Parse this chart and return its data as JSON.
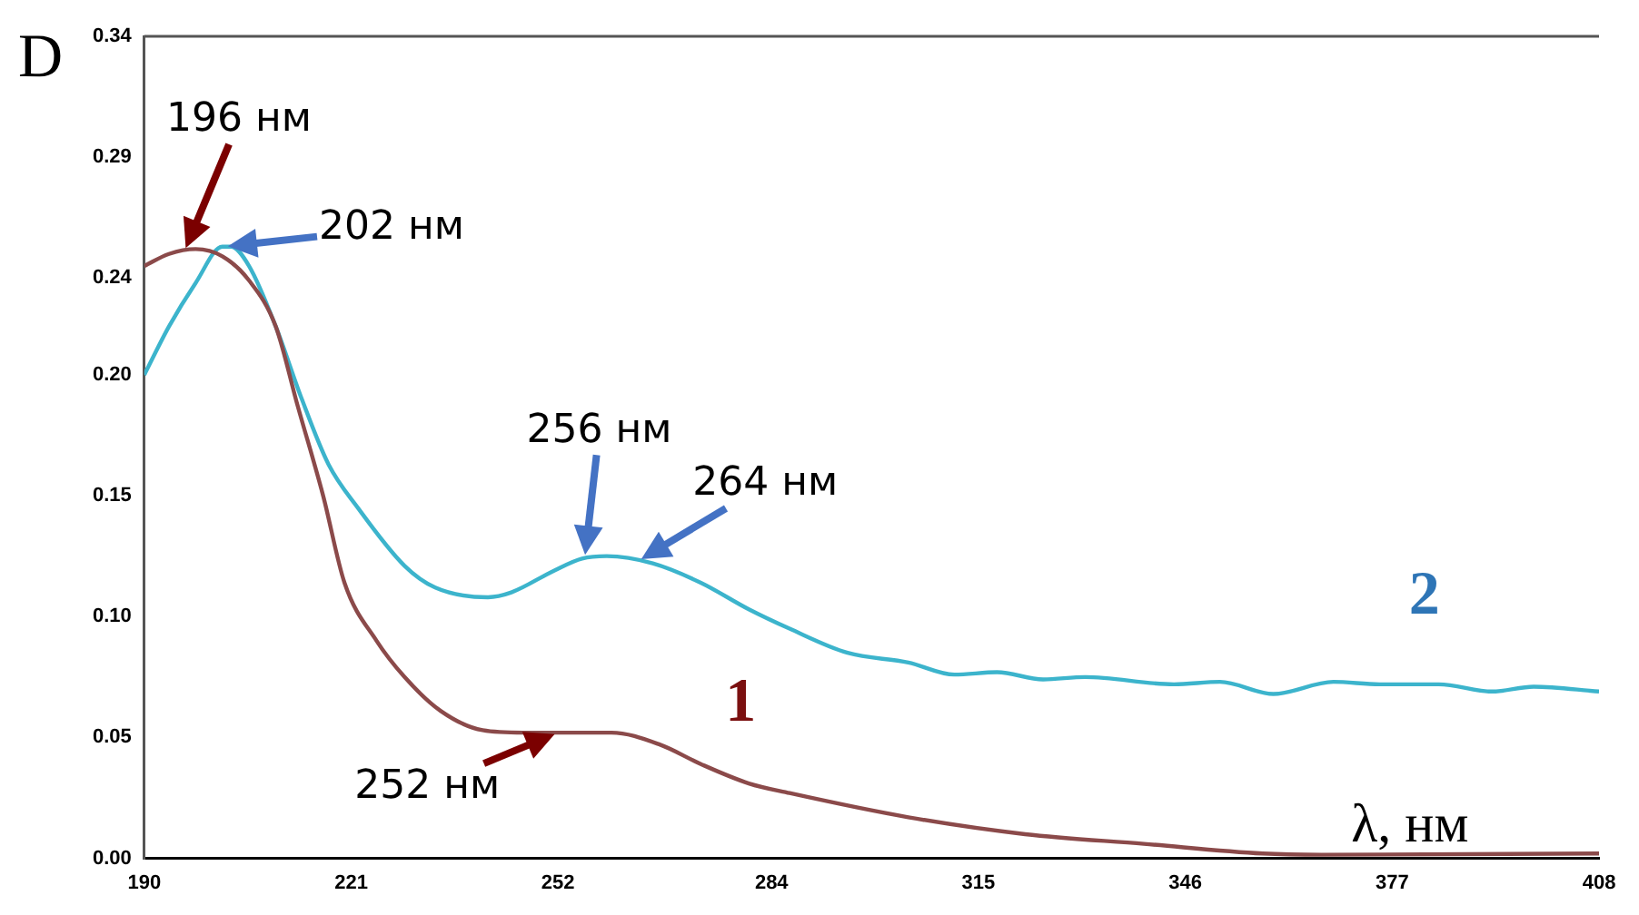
{
  "chart_data": {
    "type": "line",
    "title": "D",
    "xlabel": "λ, нм",
    "xlim": [
      190,
      408
    ],
    "xticks": [
      190,
      221,
      252,
      284,
      315,
      346,
      377,
      408
    ],
    "ylim": [
      0,
      0.34
    ],
    "yticks": [
      {
        "value": 0,
        "label": "0.00"
      },
      0.05,
      {
        "value": 0.1,
        "label": "0.10"
      },
      0.15,
      {
        "value": 0.2,
        "label": "0.20"
      },
      0.24,
      0.29,
      0.34
    ],
    "grid": false,
    "legend": false,
    "marker": "none",
    "line_style": "solid",
    "series": [
      {
        "name": "1",
        "color": "#8b4a4a",
        "x": [
          190,
          193.7,
          197.7,
          201.7,
          205.7,
          209.7,
          213,
          216.8,
          220,
          224.8,
          229,
          234.4,
          240.7,
          246.8,
          260,
          267.3,
          273.4,
          280.6,
          286.7,
          304.5,
          322,
          339.8,
          357.6,
          366.4,
          408
        ],
        "values": [
          0.245,
          0.25,
          0.252,
          0.249,
          0.239,
          0.22,
          0.187,
          0.15,
          0.114,
          0.09,
          0.075,
          0.061,
          0.053,
          0.052,
          0.052,
          0.047,
          0.039,
          0.031,
          0.027,
          0.017,
          0.01,
          0.006,
          0.002,
          0.0015,
          0.002
        ]
      },
      {
        "name": "2",
        "color": "#3cb4cc",
        "x": [
          190,
          193.7,
          197.7,
          201.7,
          203,
          205.7,
          209.7,
          213.6,
          217.6,
          222,
          229,
          233.6,
          241.5,
          245,
          251.4,
          255.6,
          259.3,
          266.2,
          273.4,
          280.6,
          286.7,
          295.4,
          304.5,
          311.4,
          317.8,
          324.7,
          331,
          344.3,
          351.2,
          359.2,
          368.2,
          375.1,
          384,
          392,
          398.2,
          408
        ],
        "values": [
          0.2,
          0.22,
          0.238,
          0.253,
          0.253,
          0.245,
          0.22,
          0.19,
          0.163,
          0.145,
          0.121,
          0.112,
          0.108,
          0.11,
          0.119,
          0.124,
          0.125,
          0.122,
          0.114,
          0.103,
          0.095,
          0.085,
          0.081,
          0.076,
          0.077,
          0.074,
          0.075,
          0.072,
          0.073,
          0.068,
          0.073,
          0.072,
          0.072,
          0.069,
          0.071,
          0.069
        ]
      }
    ],
    "annotations": [
      {
        "text": "196 нм",
        "x": 196,
        "y": 0.251
      },
      {
        "text": "202 нм",
        "x": 202,
        "y": 0.253
      },
      {
        "text": "256 нм",
        "x": 256,
        "y": 0.124
      },
      {
        "text": "264 нм",
        "x": 264,
        "y": 0.123
      },
      {
        "text": "252 нм",
        "x": 252,
        "y": 0.052
      }
    ]
  }
}
